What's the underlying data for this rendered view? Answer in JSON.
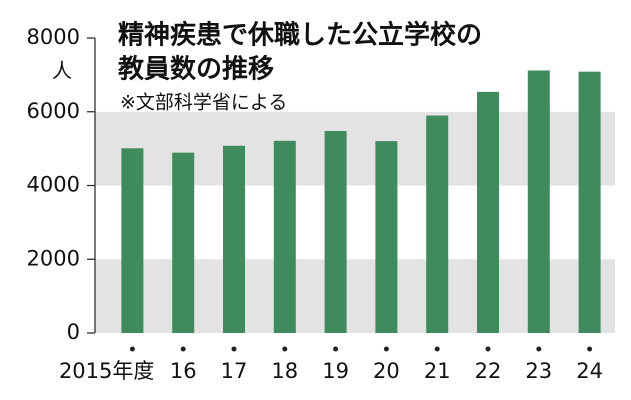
{
  "chart_data": {
    "type": "bar",
    "title": [
      "精神疾患で休職した公立学校の",
      "教員数の推移"
    ],
    "note": "※文部科学省による",
    "y_unit": "人",
    "categories": [
      "2015年度",
      "16",
      "17",
      "18",
      "19",
      "20",
      "21",
      "22",
      "23",
      "24"
    ],
    "values": [
      5009,
      4891,
      5077,
      5212,
      5478,
      5203,
      5897,
      6539,
      7119,
      7087
    ],
    "color": "#3f8b5e",
    "ylim": [
      0,
      8000
    ],
    "yticks": [
      0,
      2000,
      4000,
      6000,
      8000
    ],
    "shaded_bands": true
  }
}
